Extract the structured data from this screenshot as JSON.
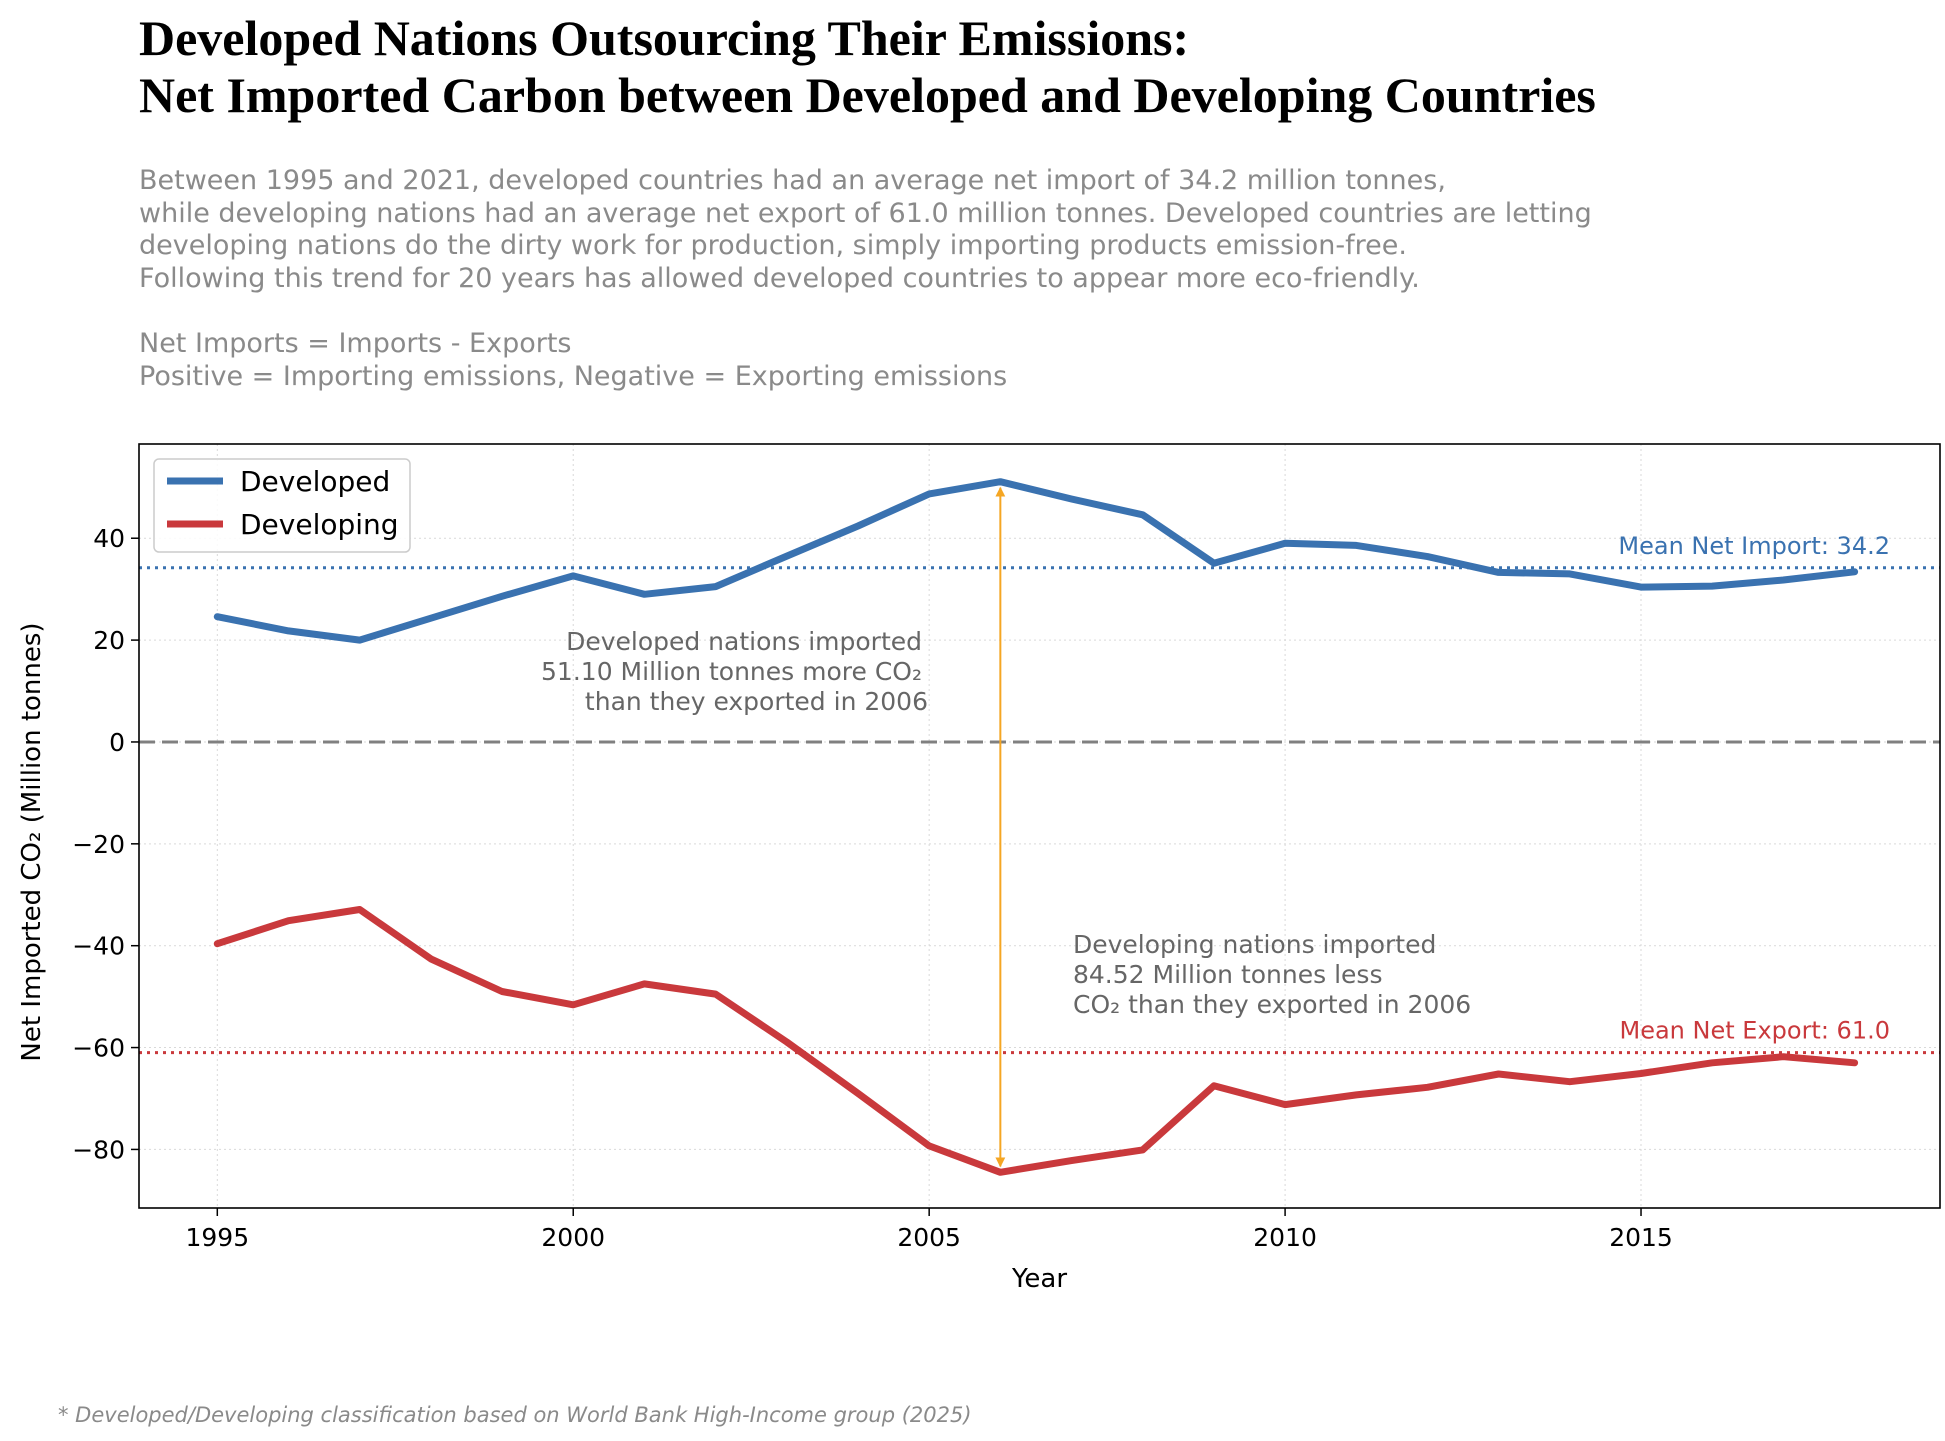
{
  "title_lines": [
    "Developed Nations Outsourcing Their Emissions:",
    "Net Imported Carbon between Developed and Developing Countries"
  ],
  "description_lines": [
    "Between 1995 and 2021, developed countries had an average net import of 34.2 million tonnes,",
    "while developing nations had an average net export of 61.0 million tonnes. Developed countries are letting",
    "developing nations do the dirty work for production, simply importing products emission-free.",
    "Following this trend for 20 years has allowed developed countries to appear more eco-friendly."
  ],
  "formula_lines": [
    "Net Imports = Imports - Exports",
    "Positive = Importing emissions, Negative = Exporting emissions"
  ],
  "footnote": "* Developed/Developing classification based on World Bank High-Income group (2025)",
  "chart_data": {
    "type": "line",
    "xlabel": "Year",
    "ylabel": "Net Imported CO₂ (Million tonnes)",
    "xlim": [
      1993.9,
      2019.2
    ],
    "ylim": [
      -91.5,
      58.5
    ],
    "x_ticks": [
      1995,
      2000,
      2005,
      2010,
      2015
    ],
    "y_ticks": [
      40,
      20,
      0,
      -20,
      -40,
      -60,
      -80
    ],
    "y_tick_labels": [
      "40",
      "20",
      "0",
      "−20",
      "−40",
      "−60",
      "−80"
    ],
    "grid": true,
    "legend_position": "top-left",
    "x": [
      1995,
      1996,
      1997,
      1998,
      1999,
      2000,
      2001,
      2002,
      2003,
      2004,
      2005,
      2006,
      2007,
      2008,
      2009,
      2010,
      2011,
      2012,
      2013,
      2014,
      2015,
      2016,
      2017,
      2018
    ],
    "series": [
      {
        "name": "Developed",
        "color": "#3a72b0",
        "values": [
          24.6,
          21.8,
          20.0,
          24.3,
          28.6,
          32.6,
          29.0,
          30.5,
          36.5,
          42.4,
          48.7,
          51.1,
          47.7,
          44.6,
          35.1,
          39.0,
          38.6,
          36.4,
          33.3,
          33.0,
          30.4,
          30.6,
          31.8,
          33.4
        ]
      },
      {
        "name": "Developing",
        "color": "#c9393c",
        "values": [
          -39.6,
          -35.1,
          -32.9,
          -42.6,
          -49.0,
          -51.6,
          -47.5,
          -49.5,
          -58.9,
          -69.0,
          -79.3,
          -84.5,
          -82.2,
          -80.1,
          -67.5,
          -71.2,
          -69.3,
          -67.8,
          -65.2,
          -66.7,
          -65.1,
          -63.0,
          -61.8,
          -63.0
        ]
      }
    ],
    "reference_lines": [
      {
        "label": "Mean Net Import: 34.2",
        "value": 34.2,
        "color": "#3a72b0",
        "style": "dotted"
      },
      {
        "label": "Mean Net Export: 61.0",
        "value": -61.0,
        "color": "#c9393c",
        "style": "dotted"
      },
      {
        "value": 0,
        "color": "#808080",
        "style": "dashed"
      }
    ],
    "arrow": {
      "x": 2006,
      "from": 51.1,
      "to": -84.5,
      "color": "#f5a623"
    },
    "annotations": [
      {
        "lines": [
          "Developed nations imported",
          "51.10 Million tonnes more CO₂",
          "than they exported in 2006"
        ],
        "align": "right"
      },
      {
        "lines": [
          "Developing nations imported",
          "84.52 Million tonnes less",
          "CO₂ than they exported in 2006"
        ],
        "align": "left"
      }
    ]
  }
}
